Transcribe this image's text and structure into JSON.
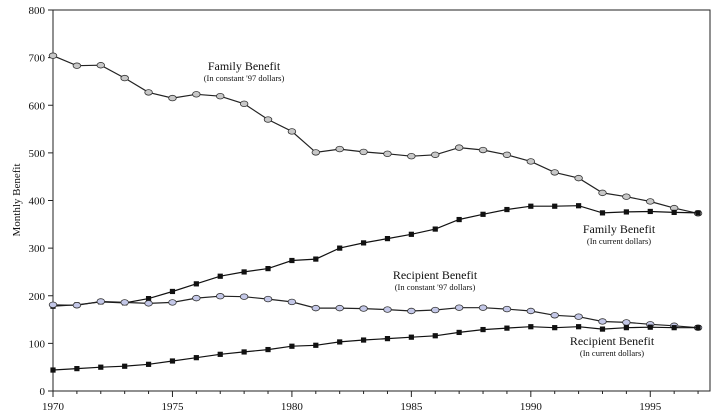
{
  "chart_data": {
    "type": "line",
    "title": "",
    "xlabel": "",
    "ylabel": "Monthly Benefit",
    "xlim": [
      1970,
      1997.5
    ],
    "ylim": [
      0,
      800
    ],
    "x_ticks": [
      1970,
      1975,
      1980,
      1985,
      1990,
      1995
    ],
    "y_ticks": [
      0,
      100,
      200,
      300,
      400,
      500,
      600,
      700,
      800
    ],
    "grid": false,
    "x": [
      1970,
      1971,
      1972,
      1973,
      1974,
      1975,
      1976,
      1977,
      1978,
      1979,
      1980,
      1981,
      1982,
      1983,
      1984,
      1985,
      1986,
      1987,
      1988,
      1989,
      1990,
      1991,
      1992,
      1993,
      1994,
      1995,
      1996,
      1997
    ],
    "series": [
      {
        "name": "Family Benefit (constant '97 dollars)",
        "marker": "gray-ellipse",
        "color": "#222222",
        "fill": "#c8c8c8",
        "values": [
          704,
          683,
          684,
          657,
          627,
          615,
          623,
          619,
          603,
          570,
          545,
          501,
          508,
          502,
          498,
          493,
          496,
          511,
          506,
          496,
          482,
          459,
          447,
          416,
          408,
          398,
          384,
          373
        ]
      },
      {
        "name": "Family Benefit (current dollars)",
        "marker": "black-square",
        "color": "#111111",
        "fill": "#111111",
        "values": [
          178,
          181,
          187,
          185,
          194,
          209,
          225,
          241,
          250,
          257,
          274,
          277,
          300,
          311,
          320,
          329,
          340,
          360,
          371,
          381,
          388,
          388,
          389,
          374,
          376,
          377,
          375,
          374
        ]
      },
      {
        "name": "Recipient Benefit (constant '97 dollars)",
        "marker": "blue-ellipse",
        "color": "#222222",
        "fill": "#c4c8e8",
        "values": [
          181,
          180,
          188,
          186,
          184,
          186,
          195,
          199,
          198,
          193,
          187,
          174,
          174,
          173,
          171,
          168,
          170,
          175,
          175,
          172,
          168,
          159,
          156,
          146,
          144,
          140,
          137,
          133
        ]
      },
      {
        "name": "Recipient Benefit (current dollars)",
        "marker": "black-square",
        "color": "#111111",
        "fill": "#111111",
        "values": [
          44,
          47,
          50,
          52,
          56,
          63,
          70,
          77,
          82,
          87,
          94,
          96,
          103,
          107,
          110,
          113,
          116,
          123,
          129,
          132,
          135,
          133,
          135,
          130,
          133,
          134,
          133,
          133
        ]
      }
    ],
    "annotations": [
      {
        "id": "family-constant",
        "title": "Family Benefit",
        "subtitle": "(In constant '97 dollars)"
      },
      {
        "id": "family-current",
        "title": "Family Benefit",
        "subtitle": "(In current dollars)"
      },
      {
        "id": "recipient-constant",
        "title": "Recipient Benefit",
        "subtitle": "(In constant '97 dollars)"
      },
      {
        "id": "recipient-current",
        "title": "Recipient Benefit",
        "subtitle": "(In current dollars)"
      }
    ]
  }
}
